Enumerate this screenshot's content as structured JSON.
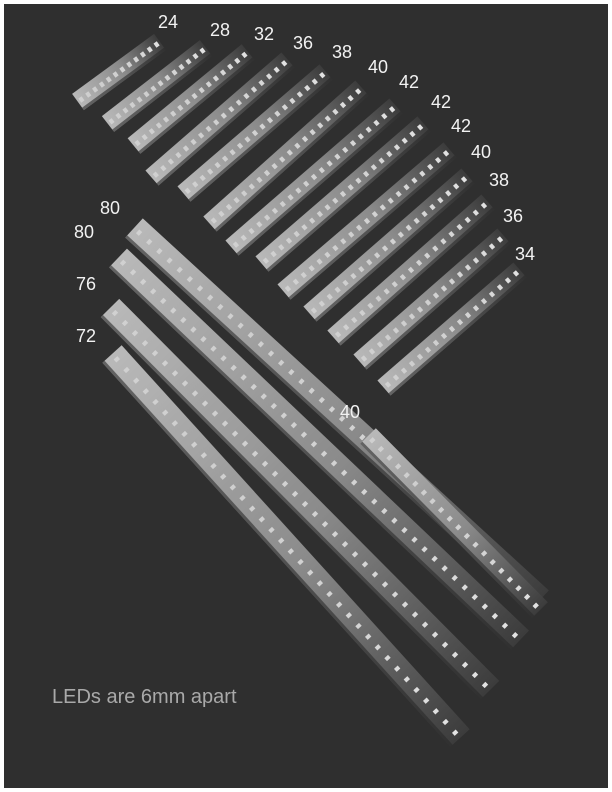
{
  "caption": "LEDs are 6mm apart",
  "colors": {
    "background": "#2f2f2f",
    "strip_light": "#b9b9b9",
    "strip_dark": "#3c3c3c",
    "led": "#e6e6e6",
    "label": "#f2f2f2",
    "caption": "#a9a9a9"
  },
  "upper_group": {
    "led_counts": [
      24,
      28,
      32,
      36,
      38,
      40,
      42,
      42,
      42,
      40,
      38,
      36,
      34
    ]
  },
  "lower_group": {
    "led_counts": [
      80,
      80,
      76,
      72
    ]
  },
  "single_strip": {
    "led_count": 40
  }
}
